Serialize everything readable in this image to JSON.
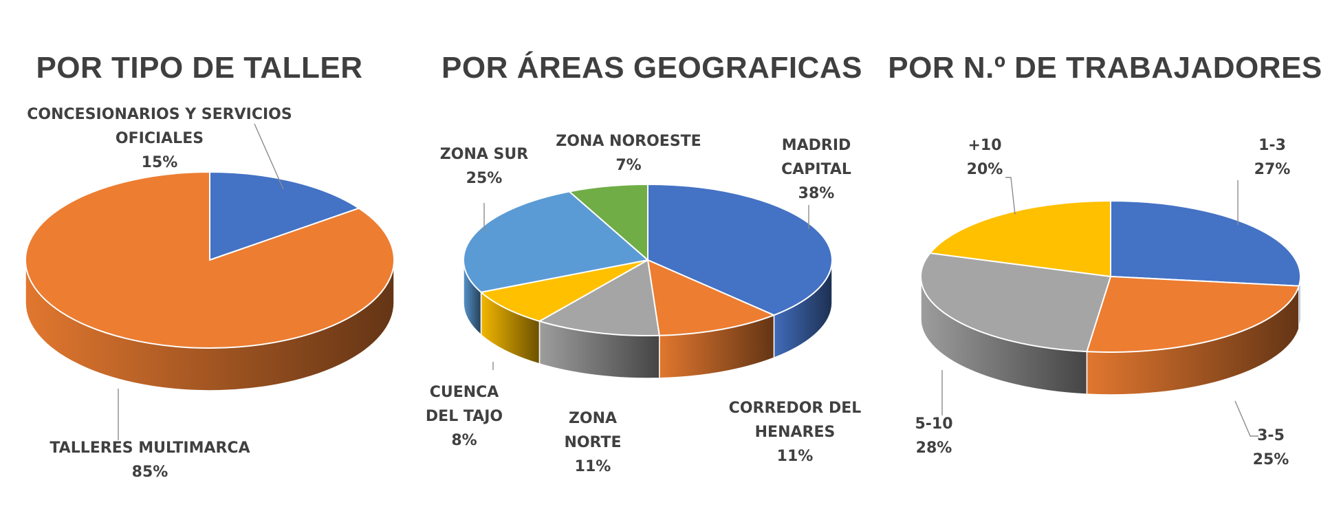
{
  "chart_data": [
    {
      "type": "pie",
      "title": "POR TIPO DE TALLER",
      "slices": [
        {
          "label": [
            "CONCESIONARIOS Y SERVICIOS",
            "OFICIALES"
          ],
          "pct": "15%",
          "value": 15,
          "color": "#4472c4"
        },
        {
          "label": [
            "TALLERES MULTIMARCA"
          ],
          "pct": "85%",
          "value": 85,
          "color": "#ed7d31"
        }
      ]
    },
    {
      "type": "pie",
      "title": "POR ÁREAS GEOGRAFICAS",
      "slices": [
        {
          "label": [
            "MADRID",
            "CAPITAL"
          ],
          "pct": "38%",
          "value": 38,
          "color": "#4472c4"
        },
        {
          "label": [
            "CORREDOR DEL",
            "HENARES"
          ],
          "pct": "11%",
          "value": 11,
          "color": "#ed7d31"
        },
        {
          "label": [
            "ZONA",
            "NORTE"
          ],
          "pct": "11%",
          "value": 11,
          "color": "#a5a5a5"
        },
        {
          "label": [
            "CUENCA",
            "DEL TAJO"
          ],
          "pct": "8%",
          "value": 8,
          "color": "#ffc000"
        },
        {
          "label": [
            "ZONA SUR"
          ],
          "pct": "25%",
          "value": 25,
          "color": "#5b9bd5"
        },
        {
          "label": [
            "ZONA NOROESTE"
          ],
          "pct": "7%",
          "value": 7,
          "color": "#70ad47"
        }
      ]
    },
    {
      "type": "pie",
      "title": "POR N.º DE TRABAJADORES",
      "slices": [
        {
          "label": [
            "1-3"
          ],
          "pct": "27%",
          "value": 27,
          "color": "#4472c4"
        },
        {
          "label": [
            "3-5"
          ],
          "pct": "25%",
          "value": 25,
          "color": "#ed7d31"
        },
        {
          "label": [
            "5-10"
          ],
          "pct": "28%",
          "value": 28,
          "color": "#a5a5a5"
        },
        {
          "label": [
            "+10"
          ],
          "pct": "20%",
          "value": 20,
          "color": "#ffc000"
        }
      ]
    }
  ]
}
